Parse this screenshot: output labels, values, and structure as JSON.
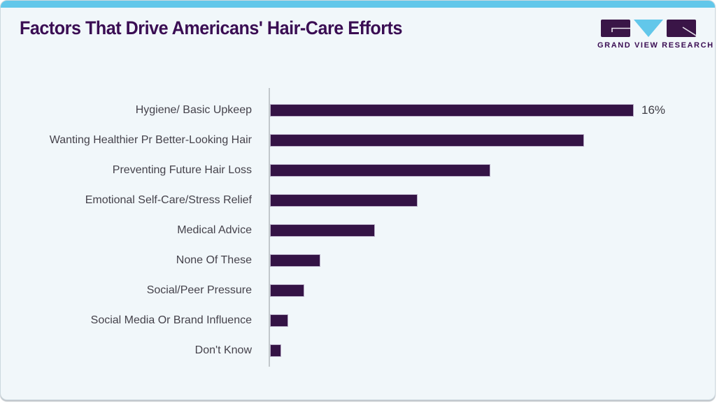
{
  "page": {
    "title": "Factors That Drive Americans' Hair-Care Efforts"
  },
  "logo": {
    "name": "Grand View Research",
    "text": "GRAND VIEW RESEARCH"
  },
  "colors": {
    "accent_blue": "#62c7ea",
    "bar_purple": "#341345",
    "title_purple": "#3a0d53",
    "card_background": "#f1f7fa",
    "axis_gray": "#c2c8cc",
    "label_gray": "#45424b"
  },
  "chart_data": {
    "type": "bar",
    "orientation": "horizontal",
    "title": "Factors That Drive Americans' Hair-Care Efforts",
    "xlabel": "",
    "ylabel": "",
    "unit": "%",
    "xlim": [
      0,
      16.5
    ],
    "grid": false,
    "legend": false,
    "categories": [
      "Hygiene/ Basic Upkeep",
      "Wanting Healthier Pr Better-Looking Hair",
      "Preventing Future Hair Loss",
      "Emotional Self-Care/Stress Relief",
      "Medical Advice",
      "None Of These",
      "Social/Peer Pressure",
      "Social Media Or Brand Influence",
      "Don't Know"
    ],
    "values": [
      16,
      13.8,
      9.7,
      6.5,
      4.6,
      2.2,
      1.5,
      0.8,
      0.5
    ],
    "value_labels": [
      "16%",
      "",
      "",
      "",
      "",
      "",
      "",
      "",
      ""
    ]
  }
}
